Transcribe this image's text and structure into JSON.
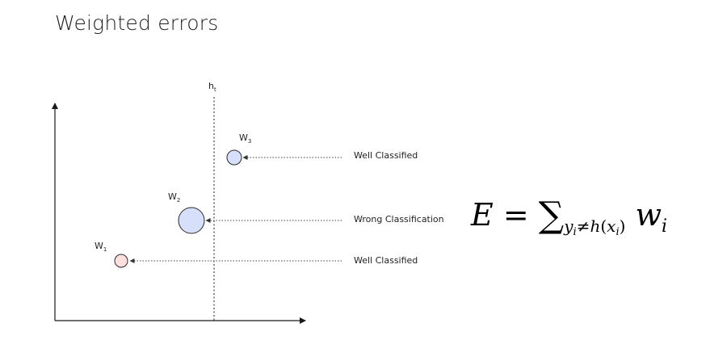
{
  "title": "Weighted errors",
  "hypothesis_label": {
    "main": "h",
    "sub": "t"
  },
  "points": [
    {
      "id": "w3",
      "label_main": "W",
      "label_sub": "3",
      "annotation": "Well Classified",
      "fill": "#d6e0fb",
      "stroke": "#2a2a2a"
    },
    {
      "id": "w2",
      "label_main": "W",
      "label_sub": "2",
      "annotation": "Wrong Classification",
      "fill": "#d6e0fb",
      "stroke": "#2a2a2a"
    },
    {
      "id": "w1",
      "label_main": "W",
      "label_sub": "1",
      "annotation": "Well Classified",
      "fill": "#fbe0dd",
      "stroke": "#2a2a2a"
    }
  ],
  "formula": {
    "lhs": "E",
    "equals": "=",
    "sigma": "∑",
    "sub_y": "y",
    "sub_i": "i",
    "sub_neq": "≠",
    "sub_h": "h",
    "sub_x": "(x",
    "sub_xi": "i",
    "sub_close": ")",
    "term": "w",
    "term_sub": "i"
  },
  "colors": {
    "axis": "#1a1a1a",
    "dotted": "#444444",
    "point_blue": "#d6e0fb",
    "point_pink": "#fbe0dd"
  }
}
